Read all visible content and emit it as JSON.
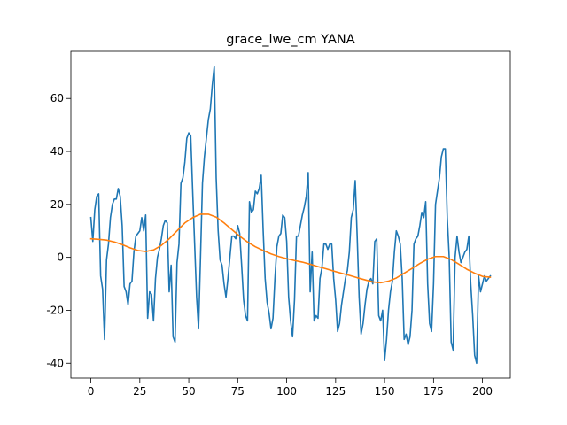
{
  "chart_data": {
    "type": "line",
    "title": "grace_lwe_cm YANA",
    "xlim": [
      -10.2,
      214.2
    ],
    "xticks": [
      0,
      25,
      50,
      75,
      100,
      125,
      150,
      175,
      200
    ],
    "ylim": [
      -45.6,
      77.8
    ],
    "yticks": [
      -40,
      -20,
      0,
      20,
      40,
      60
    ],
    "grid": false,
    "series": [
      {
        "color": "#1f77b4",
        "x": [
          0,
          1,
          2,
          3,
          4,
          5,
          6,
          7,
          8,
          9,
          10,
          11,
          12,
          13,
          14,
          15,
          16,
          17,
          18,
          19,
          20,
          21,
          22,
          23,
          24,
          25,
          26,
          27,
          28,
          29,
          30,
          31,
          32,
          33,
          34,
          35,
          36,
          37,
          38,
          39,
          40,
          41,
          42,
          43,
          44,
          45,
          46,
          47,
          48,
          49,
          50,
          51,
          52,
          53,
          54,
          55,
          56,
          57,
          58,
          59,
          60,
          61,
          62,
          63,
          64,
          65,
          66,
          67,
          68,
          69,
          70,
          71,
          72,
          73,
          74,
          75,
          76,
          77,
          78,
          79,
          80,
          81,
          82,
          83,
          84,
          85,
          86,
          87,
          88,
          89,
          90,
          91,
          92,
          93,
          94,
          95,
          96,
          97,
          98,
          99,
          100,
          101,
          102,
          103,
          104,
          105,
          106,
          107,
          108,
          109,
          110,
          111,
          112,
          113,
          114,
          115,
          116,
          117,
          118,
          119,
          120,
          121,
          122,
          123,
          124,
          125,
          126,
          127,
          128,
          129,
          130,
          131,
          132,
          133,
          134,
          135,
          136,
          137,
          138,
          139,
          140,
          141,
          142,
          143,
          144,
          145,
          146,
          147,
          148,
          149,
          150,
          151,
          152,
          153,
          154,
          155,
          156,
          157,
          158,
          159,
          160,
          161,
          162,
          163,
          164,
          165,
          166,
          167,
          168,
          169,
          170,
          171,
          172,
          173,
          174,
          175,
          176,
          177,
          178,
          179,
          180,
          181,
          182,
          183,
          184,
          185,
          186,
          187,
          188,
          189,
          190,
          191,
          192,
          193,
          194,
          195,
          196,
          197,
          198,
          199,
          200,
          201,
          202,
          203,
          204
        ],
        "values": [
          15,
          6,
          18,
          23,
          24,
          -7,
          -12,
          -31,
          -1,
          5,
          15,
          20,
          22,
          22,
          26,
          23,
          12,
          -11,
          -13,
          -18,
          -10,
          -9,
          2,
          8,
          9,
          10,
          15,
          10,
          16,
          -23,
          -13,
          -14,
          -24,
          -8,
          0,
          3,
          7,
          12,
          14,
          13,
          -13,
          -3,
          -30,
          -32,
          -2,
          5,
          28,
          30,
          36,
          45,
          47,
          46,
          25,
          5,
          -15,
          -27,
          0,
          28,
          38,
          45,
          52,
          56,
          65,
          72,
          30,
          10,
          -1,
          -3,
          -10,
          -15,
          -8,
          0,
          8,
          8,
          7,
          12,
          9,
          -3,
          -16,
          -22,
          -24,
          21,
          17,
          18,
          25,
          24,
          26,
          31,
          10,
          -8,
          -17,
          -21,
          -27,
          -23,
          -8,
          4,
          8,
          9,
          16,
          15,
          6,
          -15,
          -24,
          -30,
          -16,
          8,
          8,
          12,
          16,
          19,
          23,
          32,
          -13,
          2,
          -24,
          -22,
          -23,
          -8,
          -4,
          5,
          5,
          3,
          5,
          5,
          -8,
          -16,
          -28,
          -25,
          -18,
          -13,
          -8,
          -5,
          2,
          15,
          18,
          29,
          8,
          -15,
          -29,
          -25,
          -18,
          -12,
          -9,
          -8,
          -10,
          6,
          7,
          -22,
          -24,
          -20,
          -39,
          -31,
          -20,
          -13,
          -9,
          2,
          10,
          8,
          5,
          -8,
          -31,
          -29,
          -33,
          -30,
          -20,
          5,
          7,
          8,
          12,
          17,
          15,
          21,
          -10,
          -25,
          -28,
          -10,
          20,
          25,
          30,
          38,
          41,
          41,
          15,
          0,
          -32,
          -35,
          0,
          8,
          2,
          -2,
          0,
          2,
          3,
          8,
          -10,
          -22,
          -37,
          -40,
          -7,
          -13,
          -10,
          -7,
          -9,
          -8,
          -7
        ]
      },
      {
        "color": "#ff7f0e",
        "x": [
          0,
          4,
          8,
          12,
          16,
          20,
          24,
          28,
          32,
          36,
          40,
          44,
          48,
          52,
          56,
          60,
          64,
          68,
          72,
          76,
          80,
          84,
          88,
          92,
          96,
          100,
          104,
          108,
          112,
          116,
          120,
          124,
          128,
          132,
          136,
          140,
          144,
          148,
          152,
          156,
          160,
          164,
          168,
          172,
          176,
          180,
          184,
          188,
          192,
          196,
          200,
          204
        ],
        "values": [
          7,
          6.8,
          6.5,
          5.8,
          4.8,
          3.6,
          2.6,
          2.2,
          2.8,
          4.5,
          7,
          10,
          13,
          15,
          16.3,
          16.3,
          15.2,
          13,
          10.5,
          8,
          5.8,
          4,
          2.6,
          1.3,
          0.3,
          -0.5,
          -1.2,
          -1.8,
          -2.6,
          -3.5,
          -4.3,
          -5.2,
          -6,
          -6.8,
          -7.7,
          -8.5,
          -9.3,
          -9.6,
          -9,
          -7.8,
          -6,
          -4.2,
          -2.3,
          -0.7,
          0.3,
          0.3,
          -0.8,
          -2.6,
          -4.5,
          -6,
          -7.2,
          -7.5
        ]
      }
    ]
  }
}
